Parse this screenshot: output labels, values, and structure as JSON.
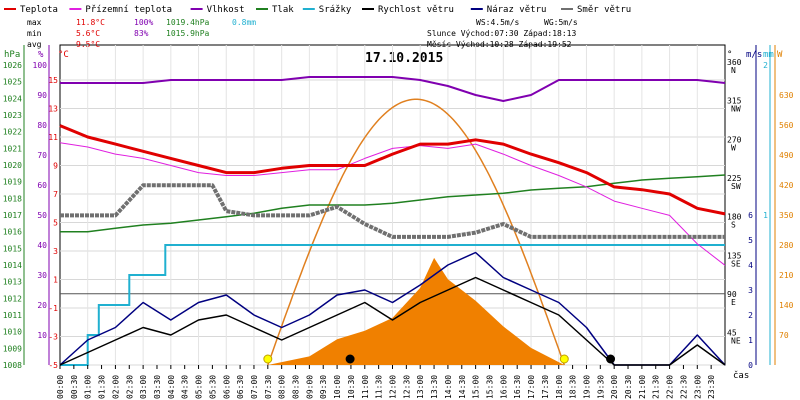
{
  "chart_data": {
    "type": "line",
    "title": "17.10.2015",
    "legend": [
      {
        "label": "Teplota",
        "color": "#e00000"
      },
      {
        "label": "Přízemní teplota",
        "color": "#e020e0"
      },
      {
        "label": "Vlhkost",
        "color": "#8000b0"
      },
      {
        "label": "Tlak",
        "color": "#208020"
      },
      {
        "label": "Srážky",
        "color": "#20b0d0"
      },
      {
        "label": "Rychlost větru",
        "color": "#000000"
      },
      {
        "label": "Náraz větru",
        "color": "#000080"
      },
      {
        "label": "Směr větru",
        "color": "#707070"
      }
    ],
    "stats": {
      "max_label": "max",
      "min_label": "min",
      "avg_label": "avg",
      "max_temp": "11.8°C",
      "max_hum": "100%",
      "max_press": "1019.4hPa",
      "max_rain": "0.8mm",
      "min_temp": "5.6°C",
      "min_hum": "83%",
      "min_press": "1015.9hPa",
      "avg_temp": "9.5°C",
      "ws": "WS:4.5m/s",
      "wg": "WG:5m/s",
      "sun": "Slunce Východ:07:30  Západ:18:13",
      "moon": "Měsíc  Východ:10:28  Západ:19:52"
    },
    "axes": {
      "hpa": {
        "label": "hPa",
        "ticks": [
          "1026",
          "1025",
          "1024",
          "1023",
          "1022",
          "1021",
          "1020",
          "1019",
          "1018",
          "1017",
          "1016",
          "1015",
          "1014",
          "1013",
          "1012",
          "1011",
          "1010",
          "1009",
          "1008"
        ]
      },
      "pct": {
        "label": "%",
        "ticks": [
          "100",
          "90",
          "80",
          "70",
          "60",
          "50",
          "40",
          "30",
          "20",
          "10"
        ]
      },
      "degc": {
        "label": "°C",
        "ticks": [
          "15",
          "13",
          "11",
          "9",
          "7",
          "5",
          "3",
          "1",
          "-1",
          "-3",
          "-5"
        ]
      },
      "dir": {
        "label": "°",
        "ticks": [
          {
            "v": "360",
            "s": "N"
          },
          {
            "v": "315",
            "s": "NW"
          },
          {
            "v": "270",
            "s": "W"
          },
          {
            "v": "225",
            "s": "SW"
          },
          {
            "v": "180",
            "s": "S"
          },
          {
            "v": "135",
            "s": "SE"
          },
          {
            "v": "90",
            "s": "E"
          },
          {
            "v": "45",
            "s": "NE"
          }
        ]
      },
      "ms": {
        "label": "m/s",
        "ticks": [
          "6",
          "5",
          "4",
          "3",
          "2",
          "1",
          "0"
        ]
      },
      "mm": {
        "label": "mm",
        "ticks": [
          "2",
          "1"
        ]
      },
      "w": {
        "label": "W",
        "ticks": [
          "630",
          "560",
          "490",
          "420",
          "350",
          "280",
          "210",
          "140",
          "70"
        ]
      },
      "x_label": "čas",
      "x_ticks": [
        "00:00",
        "00:30",
        "01:00",
        "01:30",
        "02:00",
        "02:30",
        "03:00",
        "03:30",
        "04:00",
        "04:30",
        "05:00",
        "05:30",
        "06:00",
        "06:30",
        "07:00",
        "07:30",
        "08:00",
        "08:30",
        "09:00",
        "09:30",
        "10:00",
        "10:30",
        "11:00",
        "11:30",
        "12:00",
        "12:30",
        "13:00",
        "13:30",
        "14:00",
        "14:30",
        "15:00",
        "15:30",
        "16:00",
        "16:30",
        "17:00",
        "17:30",
        "18:00",
        "18:30",
        "19:00",
        "19:30",
        "20:00",
        "20:30",
        "21:00",
        "21:30",
        "22:00",
        "22:30",
        "23:00",
        "23:30"
      ]
    },
    "series": {
      "temperature_c": {
        "x_hours": [
          0,
          1,
          2,
          3,
          4,
          5,
          6,
          7,
          8,
          9,
          10,
          11,
          12,
          13,
          14,
          15,
          16,
          17,
          18,
          19,
          20,
          21,
          22,
          23,
          24
        ],
        "values": [
          11.8,
          11,
          10.5,
          10,
          9.5,
          9,
          8.5,
          8.5,
          8.8,
          9,
          9,
          9,
          9.8,
          10.5,
          10.5,
          10.8,
          10.5,
          9.8,
          9.2,
          8.5,
          7.5,
          7.3,
          7,
          6,
          5.6
        ]
      },
      "ground_temp_c": {
        "x_hours": [
          0,
          1,
          2,
          3,
          4,
          5,
          6,
          7,
          8,
          9,
          10,
          11,
          12,
          13,
          14,
          15,
          16,
          17,
          18,
          19,
          20,
          21,
          22,
          23,
          24
        ],
        "values": [
          10.6,
          10.3,
          9.8,
          9.5,
          9,
          8.5,
          8.3,
          8.3,
          8.5,
          8.7,
          8.7,
          9.5,
          10.2,
          10.4,
          10.2,
          10.5,
          9.8,
          9,
          8.3,
          7.5,
          6.5,
          6,
          5.5,
          3.5,
          2
        ]
      },
      "humidity_pct": {
        "x_hours": [
          0,
          1,
          2,
          3,
          4,
          5,
          6,
          7,
          8,
          9,
          10,
          11,
          12,
          13,
          14,
          15,
          16,
          17,
          18,
          19,
          20,
          21,
          22,
          23,
          24
        ],
        "values": [
          94,
          94,
          94,
          94,
          95,
          95,
          95,
          95,
          95,
          96,
          96,
          96,
          96,
          95,
          93,
          90,
          88,
          90,
          95,
          95,
          95,
          95,
          95,
          95,
          94
        ]
      },
      "pressure_hpa": {
        "x_hours": [
          0,
          1,
          2,
          3,
          4,
          5,
          6,
          7,
          8,
          9,
          10,
          11,
          12,
          13,
          14,
          15,
          16,
          17,
          18,
          19,
          20,
          21,
          22,
          23,
          24
        ],
        "values": [
          1016,
          1016,
          1016.2,
          1016.4,
          1016.5,
          1016.7,
          1016.9,
          1017.1,
          1017.4,
          1017.6,
          1017.6,
          1017.6,
          1017.7,
          1017.9,
          1018.1,
          1018.2,
          1018.3,
          1018.5,
          1018.6,
          1018.7,
          1018.9,
          1019.1,
          1019.2,
          1019.3,
          1019.4
        ]
      },
      "rain_mm": {
        "x_hours": [
          0,
          1,
          1.4,
          2.5,
          3.8,
          5,
          6,
          7,
          8,
          9,
          10,
          11,
          12,
          13,
          14,
          15,
          16,
          17,
          18,
          19,
          20,
          21,
          22,
          23,
          24
        ],
        "values": [
          0,
          0.2,
          0.4,
          0.6,
          0.8,
          0.8,
          0.8,
          0.8,
          0.8,
          0.8,
          0.8,
          0.8,
          0.8,
          0.8,
          0.8,
          0.8,
          0.8,
          0.8,
          0.8,
          0.8,
          0.8,
          0.8,
          0.8,
          0.8,
          0.8
        ]
      },
      "wind_speed_ms": {
        "x_hours": [
          0,
          1,
          2,
          3,
          4,
          5,
          6,
          7,
          8,
          9,
          10,
          11,
          12,
          13,
          14,
          15,
          16,
          17,
          18,
          19,
          20,
          21,
          22,
          23,
          24
        ],
        "values": [
          0,
          0.5,
          1,
          1.5,
          1.2,
          1.8,
          2,
          1.5,
          1,
          1.5,
          2,
          2.5,
          1.8,
          2.5,
          3,
          3.5,
          3,
          2.5,
          2,
          1,
          0,
          0,
          0,
          0.8,
          0
        ]
      },
      "wind_gust_ms": {
        "x_hours": [
          0,
          1,
          2,
          3,
          4,
          5,
          6,
          7,
          8,
          9,
          10,
          11,
          12,
          13,
          14,
          15,
          16,
          17,
          18,
          19,
          20,
          21,
          22,
          23,
          24
        ],
        "values": [
          0,
          1,
          1.5,
          2.5,
          1.8,
          2.5,
          2.8,
          2,
          1.5,
          2,
          2.8,
          3,
          2.5,
          3.2,
          4,
          4.5,
          3.5,
          3,
          2.5,
          1.5,
          0,
          0,
          0,
          1.2,
          0
        ]
      },
      "wind_dir_deg": {
        "x_hours": [
          0,
          2,
          3,
          5.5,
          6,
          7,
          8,
          9,
          10,
          11,
          12,
          13,
          14,
          15,
          16,
          17,
          18,
          19,
          20,
          21,
          22,
          23,
          24
        ],
        "values": [
          185,
          185,
          220,
          220,
          190,
          185,
          185,
          185,
          195,
          175,
          160,
          160,
          160,
          165,
          175,
          160,
          160,
          160,
          160,
          160,
          160,
          160,
          160
        ]
      },
      "solar_w": {
        "x_hours": [
          7.5,
          9,
          10,
          11,
          12,
          13,
          13.5,
          14,
          15,
          16,
          17,
          18.2
        ],
        "values": [
          0,
          20,
          60,
          80,
          110,
          180,
          250,
          200,
          150,
          90,
          40,
          0
        ]
      }
    }
  }
}
